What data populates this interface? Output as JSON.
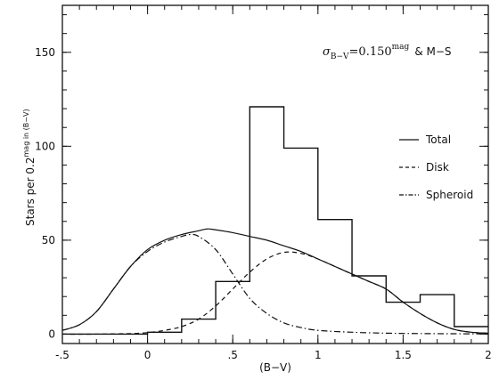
{
  "chart_data": {
    "type": "line",
    "xlabel": "(B−V)",
    "ylabel": "Stars per 0.2^mag in (B−V)",
    "ylabel_main": "Stars per 0.2",
    "ylabel_sup": "mag in (B−V)",
    "xlim": [
      -0.5,
      2.0
    ],
    "ylim": [
      -5,
      175
    ],
    "x_ticks": [
      -0.5,
      0,
      0.5,
      1,
      1.5,
      2
    ],
    "x_tick_labels": [
      "-.5",
      "0",
      ".5",
      "1",
      "1.5",
      "2"
    ],
    "y_ticks": [
      0,
      50,
      100,
      150
    ],
    "y_tick_labels": [
      "0",
      "50",
      "100",
      "150"
    ],
    "grid": false,
    "annotation": {
      "sigma": "σ",
      "subscript": "B−V",
      "value": "=0.150",
      "superscript": "mag",
      "suffix": "& M−S"
    },
    "legend": {
      "placement": "right",
      "entries": [
        {
          "label": "Total",
          "style": "solid"
        },
        {
          "label": "Disk",
          "style": "dashed"
        },
        {
          "label": "Spheroid",
          "style": "dash-dot"
        }
      ]
    },
    "histogram": {
      "style": "step",
      "edges": [
        -0.5,
        0.0,
        0.2,
        0.4,
        0.6,
        0.8,
        1.0,
        1.2,
        1.4,
        1.6,
        1.8,
        2.0
      ],
      "counts": [
        0,
        1,
        8,
        28,
        121,
        99,
        61,
        31,
        17,
        21,
        4
      ]
    },
    "series": [
      {
        "name": "Total",
        "style": "solid",
        "x": [
          -0.5,
          -0.4,
          -0.3,
          -0.2,
          -0.1,
          0.0,
          0.1,
          0.2,
          0.3,
          0.35,
          0.4,
          0.5,
          0.6,
          0.7,
          0.8,
          0.9,
          1.0,
          1.1,
          1.2,
          1.3,
          1.4,
          1.5,
          1.6,
          1.7,
          1.8,
          1.9,
          2.0
        ],
        "y": [
          2,
          5,
          12,
          24,
          36,
          45,
          50,
          53,
          55,
          56,
          55.5,
          54,
          52,
          50,
          47,
          44,
          40,
          36,
          32,
          28,
          24,
          17,
          11,
          6,
          2.5,
          1,
          0.5
        ]
      },
      {
        "name": "Disk",
        "style": "dashed",
        "x": [
          -0.5,
          -0.3,
          -0.1,
          0.0,
          0.1,
          0.2,
          0.3,
          0.4,
          0.5,
          0.6,
          0.7,
          0.8,
          0.9,
          1.0,
          1.1,
          1.2,
          1.3,
          1.4,
          1.5,
          1.6,
          1.7,
          1.8,
          1.9,
          2.0
        ],
        "y": [
          0,
          0,
          0.3,
          0.8,
          2,
          4,
          8,
          15,
          24,
          33,
          40,
          43.5,
          43,
          40,
          36,
          32,
          28,
          24,
          17,
          11,
          6,
          2.5,
          1,
          0.5
        ]
      },
      {
        "name": "Spheroid",
        "style": "dash-dot",
        "x": [
          -0.5,
          -0.4,
          -0.3,
          -0.2,
          -0.1,
          0.0,
          0.1,
          0.2,
          0.25,
          0.3,
          0.4,
          0.5,
          0.6,
          0.7,
          0.8,
          0.9,
          1.0,
          1.2,
          1.4,
          1.6,
          1.8,
          2.0
        ],
        "y": [
          2,
          5,
          12,
          24,
          36,
          44,
          49,
          52,
          53,
          52,
          45,
          32,
          19,
          11,
          6,
          3.5,
          2,
          1,
          0.5,
          0.3,
          0.2,
          0.1
        ]
      }
    ]
  }
}
